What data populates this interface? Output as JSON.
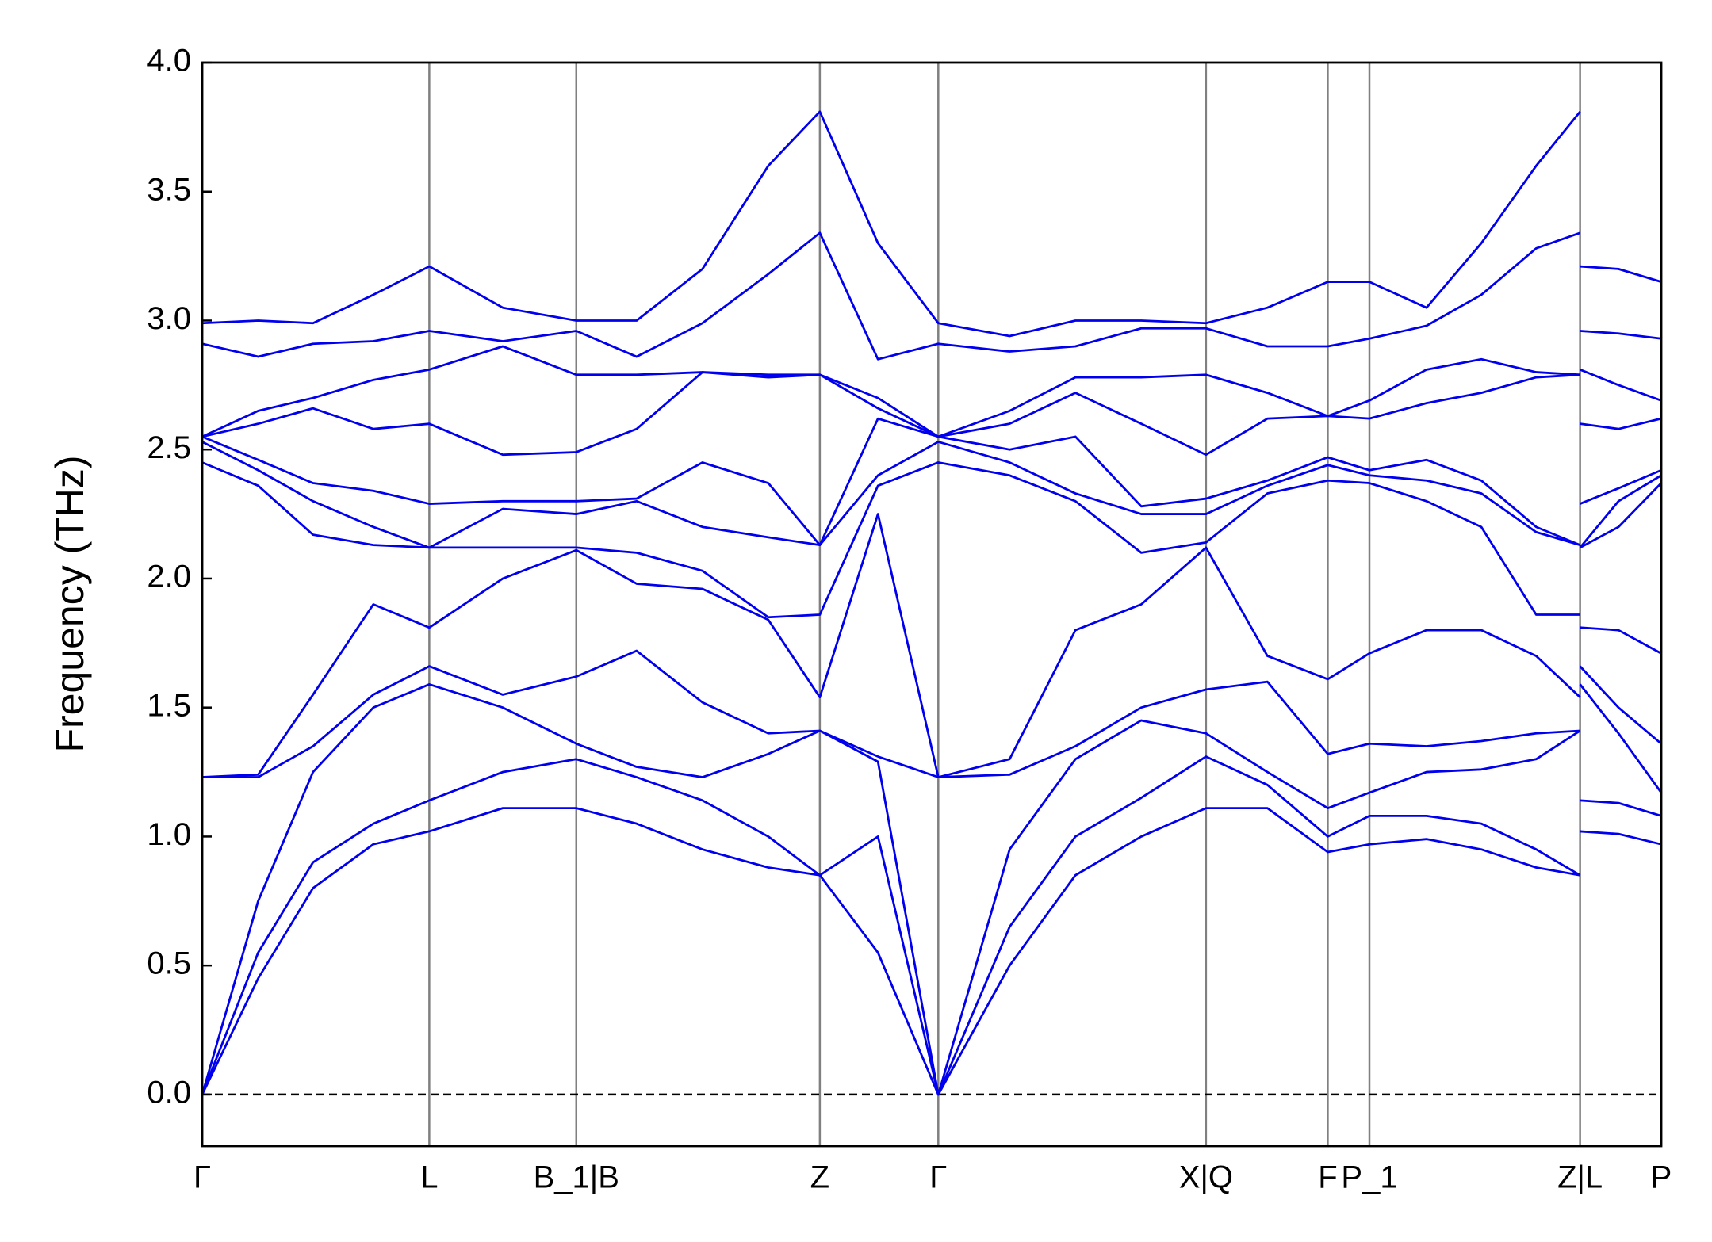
{
  "chart_data": {
    "type": "line",
    "ylabel": "Frequency (THz)",
    "color": "#0000ee",
    "x": [
      0,
      0.051,
      0.101,
      0.156,
      0.207,
      0.274,
      0.341,
      0.396,
      0.456,
      0.516,
      0.563,
      0.616,
      0.671,
      0.736,
      0.796,
      0.856,
      0.915,
      0.971,
      1.026,
      1.064,
      1.116,
      1.166,
      1.216,
      1.256,
      1.256,
      1.256,
      1.291,
      1.33
    ],
    "series": [
      {
        "values": [
          0,
          0.45,
          0.8,
          0.97,
          1.02,
          1.11,
          1.11,
          1.05,
          0.95,
          0.88,
          0.85,
          0.55,
          0,
          0.5,
          0.85,
          1.0,
          1.11,
          1.11,
          0.94,
          0.97,
          0.99,
          0.95,
          0.88,
          0.85,
          null,
          1.02,
          1.01,
          0.97
        ]
      },
      {
        "values": [
          0,
          0.55,
          0.9,
          1.05,
          1.14,
          1.25,
          1.3,
          1.23,
          1.14,
          1.0,
          0.85,
          1.0,
          0,
          0.65,
          1.0,
          1.15,
          1.31,
          1.2,
          1.0,
          1.08,
          1.08,
          1.05,
          0.95,
          0.85,
          null,
          1.14,
          1.13,
          1.08
        ]
      },
      {
        "values": [
          0,
          0.75,
          1.25,
          1.5,
          1.59,
          1.5,
          1.36,
          1.27,
          1.23,
          1.32,
          1.41,
          1.29,
          0,
          0.95,
          1.3,
          1.45,
          1.4,
          1.25,
          1.11,
          1.17,
          1.25,
          1.26,
          1.3,
          1.41,
          null,
          1.59,
          1.4,
          1.17
        ]
      },
      {
        "values": [
          1.23,
          1.23,
          1.35,
          1.55,
          1.66,
          1.55,
          1.62,
          1.72,
          1.52,
          1.4,
          1.41,
          1.31,
          1.23,
          1.24,
          1.35,
          1.5,
          1.57,
          1.6,
          1.32,
          1.36,
          1.35,
          1.37,
          1.4,
          1.41,
          null,
          1.66,
          1.5,
          1.36
        ]
      },
      {
        "values": [
          1.23,
          1.24,
          1.55,
          1.9,
          1.81,
          2.0,
          2.11,
          1.98,
          1.96,
          1.84,
          1.54,
          2.25,
          1.23,
          1.3,
          1.8,
          1.9,
          2.12,
          1.7,
          1.61,
          1.71,
          1.8,
          1.8,
          1.7,
          1.54,
          null,
          1.81,
          1.8,
          1.71
        ]
      },
      {
        "values": [
          2.45,
          2.36,
          2.17,
          2.13,
          2.12,
          2.12,
          2.12,
          2.1,
          2.03,
          1.85,
          1.86,
          2.36,
          2.45,
          2.4,
          2.3,
          2.1,
          2.14,
          2.33,
          2.38,
          2.37,
          2.3,
          2.2,
          1.86,
          1.86,
          null,
          2.12,
          2.2,
          2.37
        ]
      },
      {
        "values": [
          2.53,
          2.42,
          2.3,
          2.2,
          2.12,
          2.27,
          2.25,
          2.3,
          2.2,
          2.16,
          2.13,
          2.4,
          2.53,
          2.45,
          2.33,
          2.25,
          2.25,
          2.36,
          2.44,
          2.4,
          2.38,
          2.33,
          2.18,
          2.13,
          null,
          2.12,
          2.3,
          2.4
        ]
      },
      {
        "values": [
          2.55,
          2.46,
          2.37,
          2.34,
          2.29,
          2.3,
          2.3,
          2.31,
          2.45,
          2.37,
          2.13,
          2.62,
          2.55,
          2.5,
          2.55,
          2.28,
          2.31,
          2.38,
          2.47,
          2.42,
          2.46,
          2.38,
          2.2,
          2.13,
          null,
          2.29,
          2.35,
          2.42
        ]
      },
      {
        "values": [
          2.55,
          2.6,
          2.66,
          2.58,
          2.6,
          2.48,
          2.49,
          2.58,
          2.8,
          2.78,
          2.79,
          2.66,
          2.55,
          2.6,
          2.72,
          2.6,
          2.48,
          2.62,
          2.63,
          2.62,
          2.68,
          2.72,
          2.78,
          2.79,
          null,
          2.6,
          2.58,
          2.62
        ]
      },
      {
        "values": [
          2.55,
          2.65,
          2.7,
          2.77,
          2.81,
          2.9,
          2.79,
          2.79,
          2.8,
          2.79,
          2.79,
          2.7,
          2.55,
          2.65,
          2.78,
          2.78,
          2.79,
          2.72,
          2.63,
          2.69,
          2.81,
          2.85,
          2.8,
          2.79,
          null,
          2.81,
          2.75,
          2.69
        ]
      },
      {
        "values": [
          2.91,
          2.86,
          2.91,
          2.92,
          2.96,
          2.92,
          2.96,
          2.86,
          2.99,
          3.18,
          3.34,
          2.85,
          2.91,
          2.88,
          2.9,
          2.97,
          2.97,
          2.9,
          2.9,
          2.93,
          2.98,
          3.1,
          3.28,
          3.34,
          null,
          2.96,
          2.95,
          2.93
        ]
      },
      {
        "values": [
          2.99,
          3.0,
          2.99,
          3.1,
          3.21,
          3.05,
          3.0,
          3.0,
          3.2,
          3.6,
          3.81,
          3.3,
          2.99,
          2.94,
          3.0,
          3.0,
          2.99,
          3.05,
          3.15,
          3.15,
          3.05,
          3.3,
          3.6,
          3.81,
          null,
          3.21,
          3.2,
          3.15
        ]
      }
    ],
    "xlim": [
      0,
      1.33
    ],
    "ylim": [
      -0.2,
      4.0
    ],
    "xticks": [
      {
        "value": 0,
        "label": "Γ"
      },
      {
        "value": 0.207,
        "label": "L"
      },
      {
        "value": 0.341,
        "label": "B_1|B"
      },
      {
        "value": 0.563,
        "label": "Z"
      },
      {
        "value": 0.671,
        "label": "Γ"
      },
      {
        "value": 0.915,
        "label": "X|Q"
      },
      {
        "value": 1.026,
        "label": "F"
      },
      {
        "value": 1.064,
        "label": "P_1"
      },
      {
        "value": 1.256,
        "label": "Z|L"
      },
      {
        "value": 1.33,
        "label": "P"
      }
    ],
    "yticks": [
      {
        "value": 0,
        "label": "0.0"
      },
      0.5,
      {
        "value": 1,
        "label": "1.0"
      },
      1.5,
      {
        "value": 2,
        "label": "2.0"
      },
      2.5,
      {
        "value": 3,
        "label": "3.0"
      },
      3.5,
      {
        "value": 4,
        "label": "4.0"
      }
    ],
    "hlines": [
      0
    ],
    "grid": true
  }
}
